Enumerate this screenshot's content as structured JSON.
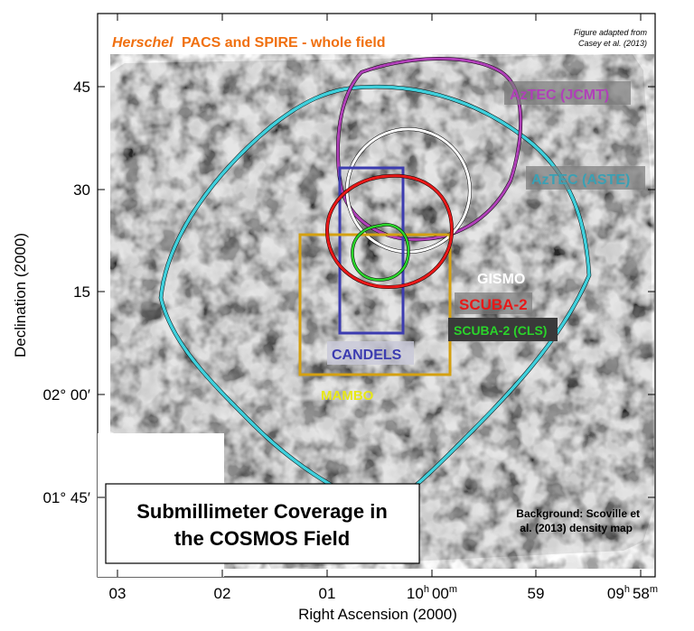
{
  "figure": {
    "header_italic": "Herschel",
    "header_rest": "PACS and SPIRE - whole field",
    "credit_line1": "Figure adapted from",
    "credit_line2": "Casey et al. (2013)",
    "title_line1": "Submillimeter Coverage in",
    "title_line2": "the COSMOS Field",
    "background_note_line1": "Background: Scoville et",
    "background_note_line2": "al. (2013) density map"
  },
  "axes": {
    "x_title": "Right Ascension (2000)",
    "y_title": "Declination (2000)",
    "x_ticks": {
      "t03": "03",
      "t02": "02",
      "t01": "01",
      "t00_main": "10",
      "t00_h": "h",
      "t00_m_val": "00",
      "t00_m": "m",
      "t59": "59",
      "t58_main": "09",
      "t58_h": "h",
      "t58_m_val": "58",
      "t58_m": "m"
    },
    "y_ticks": {
      "t45": "45",
      "t30": "30",
      "t15": "15",
      "t0200": "02° 00′",
      "t0145": "01° 45′"
    }
  },
  "surveys": {
    "pacs_spire": {
      "color": "#3fd0dc"
    },
    "aztec_jcmt": {
      "label": "AzTEC (JCMT)",
      "color": "#b040b8"
    },
    "aztec_aste": {
      "label": "AzTEC (ASTE)",
      "color": "#3aa0b4"
    },
    "gismo": {
      "label": "GISMO",
      "color": "#ffffff"
    },
    "scuba2": {
      "label": "SCUBA-2",
      "color": "#e81818"
    },
    "scuba2_cls": {
      "label": "SCUBA-2 (CLS)",
      "color": "#2ad42a"
    },
    "candels": {
      "label": "CANDELS",
      "color": "#3c3cb0"
    },
    "mambo": {
      "label": "MAMBO",
      "color": "#e8e818",
      "box_color": "#d4a010"
    }
  },
  "colors": {
    "header_orange": "#f07010",
    "label_bg": "#5a5a5a"
  }
}
